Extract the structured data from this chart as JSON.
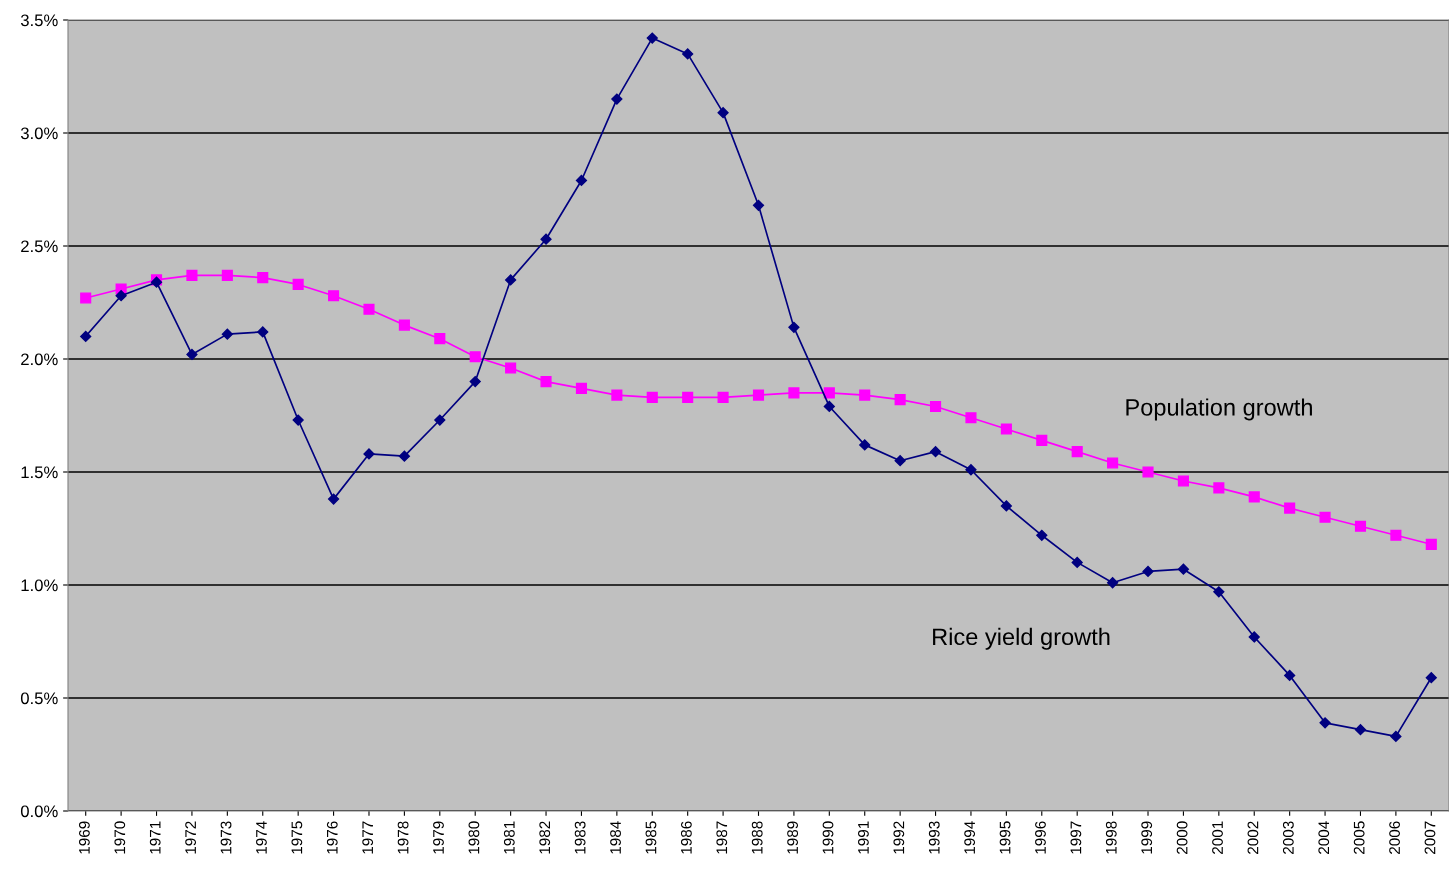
{
  "chart_data": {
    "type": "line",
    "categories": [
      "1969",
      "1970",
      "1971",
      "1972",
      "1973",
      "1974",
      "1975",
      "1976",
      "1977",
      "1978",
      "1979",
      "1980",
      "1981",
      "1982",
      "1983",
      "1984",
      "1985",
      "1986",
      "1987",
      "1988",
      "1989",
      "1990",
      "1991",
      "1992",
      "1993",
      "1994",
      "1995",
      "1996",
      "1997",
      "1998",
      "1999",
      "2000",
      "2001",
      "2002",
      "2003",
      "2004",
      "2005",
      "2006",
      "2007"
    ],
    "series": [
      {
        "name": "Rice yield growth",
        "color": "#000080",
        "marker": "diamond",
        "values": [
          2.1,
          2.28,
          2.34,
          2.02,
          2.11,
          2.12,
          1.73,
          1.38,
          1.58,
          1.57,
          1.73,
          1.9,
          2.35,
          2.53,
          2.79,
          3.15,
          3.42,
          3.35,
          3.09,
          2.68,
          2.14,
          1.79,
          1.62,
          1.55,
          1.59,
          1.51,
          1.35,
          1.22,
          1.1,
          1.01,
          1.06,
          1.07,
          0.97,
          0.77,
          0.6,
          0.39,
          0.36,
          0.33,
          0.59
        ]
      },
      {
        "name": "Population growth",
        "color": "#ff00ff",
        "marker": "square",
        "values": [
          2.27,
          2.31,
          2.35,
          2.37,
          2.37,
          2.36,
          2.33,
          2.28,
          2.22,
          2.15,
          2.09,
          2.01,
          1.96,
          1.9,
          1.87,
          1.84,
          1.83,
          1.83,
          1.83,
          1.84,
          1.85,
          1.85,
          1.84,
          1.82,
          1.79,
          1.74,
          1.69,
          1.64,
          1.59,
          1.54,
          1.5,
          1.46,
          1.43,
          1.39,
          1.34,
          1.3,
          1.26,
          1.22,
          1.18
        ]
      }
    ],
    "ylim": [
      0,
      3.5
    ],
    "yticks": [
      {
        "value": 0,
        "label": "0.0%"
      },
      {
        "value": 0.5,
        "label": "0.5%"
      },
      {
        "value": 1,
        "label": "1.0%"
      },
      {
        "value": 1.5,
        "label": "1.5%"
      },
      {
        "value": 2,
        "label": "2.0%"
      },
      {
        "value": 2.5,
        "label": "2.5%"
      },
      {
        "value": 3,
        "label": "3.0%"
      },
      {
        "value": 3.5,
        "label": "3.5%"
      }
    ],
    "grid": "y",
    "legend": false
  }
}
